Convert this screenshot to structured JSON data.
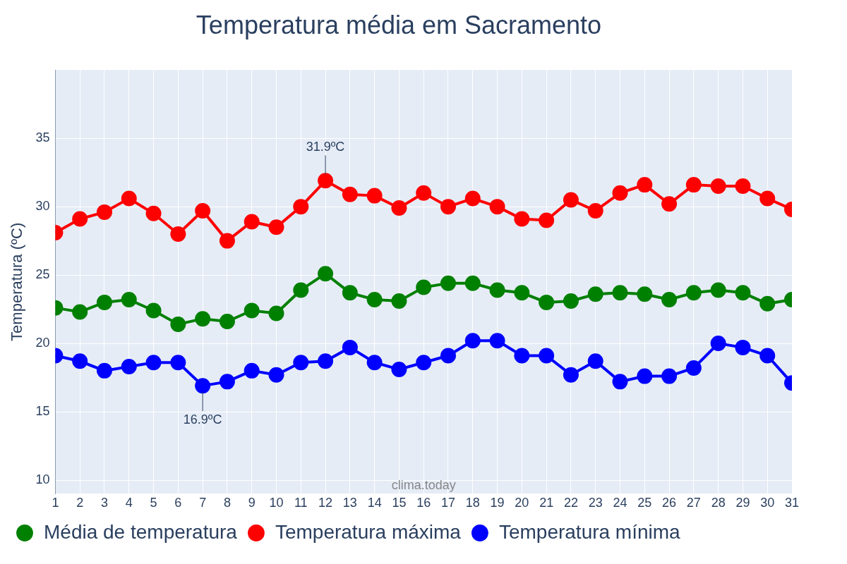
{
  "chart_data": {
    "type": "line",
    "title": "Temperatura média em Sacramento",
    "y_label": "Temperatura (ºC)",
    "x": [
      1,
      2,
      3,
      4,
      5,
      6,
      7,
      8,
      9,
      10,
      11,
      12,
      13,
      14,
      15,
      16,
      17,
      18,
      19,
      20,
      21,
      22,
      23,
      24,
      25,
      26,
      27,
      28,
      29,
      30,
      31
    ],
    "xlim": [
      1,
      31
    ],
    "xticks": [
      1,
      2,
      3,
      4,
      5,
      6,
      7,
      8,
      9,
      10,
      11,
      12,
      13,
      14,
      15,
      16,
      17,
      18,
      19,
      20,
      21,
      22,
      23,
      24,
      25,
      26,
      27,
      28,
      29,
      30,
      31
    ],
    "ylim": [
      9,
      40
    ],
    "yticks": [
      10,
      15,
      20,
      25,
      30,
      35
    ],
    "grid": true,
    "legend": "bottom",
    "series": [
      {
        "name": "Média de temperatura",
        "color": "#008000",
        "marker": "circle",
        "values": [
          22.6,
          22.3,
          23.0,
          23.2,
          22.4,
          21.4,
          21.8,
          21.6,
          22.4,
          22.2,
          23.9,
          25.1,
          23.7,
          23.2,
          23.1,
          24.1,
          24.4,
          24.4,
          23.9,
          23.7,
          23.0,
          23.1,
          23.6,
          23.7,
          23.6,
          23.2,
          23.7,
          23.9,
          23.7,
          22.9,
          23.2
        ]
      },
      {
        "name": "Temperatura máxima",
        "color": "#ff0000",
        "marker": "circle",
        "values": [
          28.1,
          29.1,
          29.6,
          30.6,
          29.5,
          28.0,
          29.7,
          27.5,
          28.9,
          28.5,
          30.0,
          31.9,
          30.9,
          30.8,
          29.9,
          31.0,
          30.0,
          30.6,
          30.0,
          29.1,
          29.0,
          30.5,
          29.7,
          31.0,
          31.6,
          30.2,
          31.6,
          31.5,
          31.5,
          30.6,
          29.8
        ]
      },
      {
        "name": "Temperatura mínima",
        "color": "#0000ff",
        "marker": "circle",
        "values": [
          19.1,
          18.7,
          18.0,
          18.3,
          18.6,
          18.6,
          16.9,
          17.2,
          18.0,
          17.7,
          18.6,
          18.7,
          19.7,
          18.6,
          18.1,
          18.6,
          19.1,
          20.2,
          20.2,
          19.1,
          19.1,
          17.7,
          18.7,
          17.2,
          17.6,
          17.6,
          18.2,
          20.0,
          19.7,
          19.1,
          17.1
        ]
      }
    ],
    "annotations": [
      {
        "text": "31.9ºC",
        "x": 12,
        "y": 31.9
      },
      {
        "text": "16.9ºC",
        "x": 7,
        "y": 16.9
      }
    ],
    "watermark": "clima.today"
  }
}
